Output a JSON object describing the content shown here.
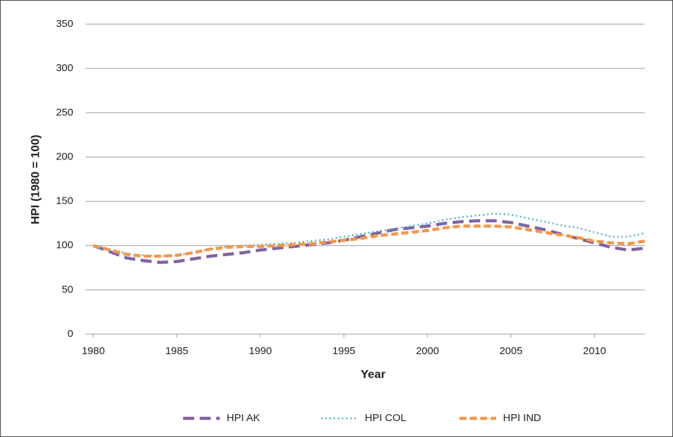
{
  "chart_data": {
    "type": "line",
    "x_label": "Year",
    "y_label": "HPI (1980 = 100)",
    "x": [
      1980,
      1981,
      1982,
      1983,
      1984,
      1985,
      1986,
      1987,
      1988,
      1989,
      1990,
      1991,
      1992,
      1993,
      1994,
      1995,
      1996,
      1997,
      1998,
      1999,
      2000,
      2001,
      2002,
      2003,
      2004,
      2005,
      2006,
      2007,
      2008,
      2009,
      2010,
      2011,
      2012,
      2013
    ],
    "series": [
      {
        "name": "HPI AK",
        "color": "#8064a2",
        "values": [
          100,
          93,
          86,
          83,
          81,
          82,
          85,
          88,
          90,
          92,
          95,
          97,
          99,
          101,
          103,
          106,
          110,
          114,
          118,
          120,
          122,
          125,
          127,
          128,
          128,
          126,
          122,
          118,
          113,
          108,
          103,
          98,
          95,
          97
        ]
      },
      {
        "name": "HPI COL",
        "color": "#4bacc6",
        "values": [
          100,
          96,
          91,
          89,
          88,
          89,
          92,
          96,
          99,
          100,
          101,
          102,
          103,
          105,
          107,
          110,
          113,
          116,
          119,
          122,
          125,
          129,
          132,
          134,
          136,
          135,
          131,
          127,
          123,
          120,
          115,
          110,
          110,
          114
        ]
      },
      {
        "name": "HPI IND",
        "color": "#f79646",
        "values": [
          100,
          95,
          90,
          88,
          88,
          89,
          92,
          96,
          98,
          99,
          99,
          100,
          101,
          102,
          104,
          106,
          108,
          111,
          113,
          115,
          117,
          120,
          122,
          122,
          122,
          121,
          118,
          115,
          112,
          109,
          105,
          103,
          102,
          105
        ]
      }
    ],
    "xlim": [
      1980,
      2013
    ],
    "xticks": [
      1980,
      1985,
      1990,
      1995,
      2000,
      2005,
      2010
    ],
    "ylim": [
      0,
      350
    ],
    "yticks": [
      0,
      50,
      100,
      150,
      200,
      250,
      300,
      350
    ],
    "grid": true,
    "legend": "bottom"
  }
}
